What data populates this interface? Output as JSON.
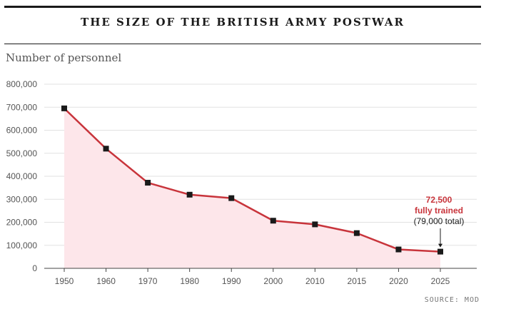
{
  "chart_data": {
    "type": "line",
    "title": "THE SIZE OF THE BRITISH ARMY POSTWAR",
    "ylabel": "Number of personnel",
    "xlabel": "",
    "source": "SOURCE: MOD",
    "categories": [
      "1950",
      "1960",
      "1970",
      "1980",
      "1990",
      "2000",
      "2010",
      "2015",
      "2020",
      "2025"
    ],
    "values": [
      695000,
      520000,
      372000,
      320000,
      305000,
      207000,
      191000,
      153000,
      82000,
      72500
    ],
    "ylim": [
      0,
      800000
    ],
    "yticks": [
      "0",
      "100,000",
      "200,000",
      "300,000",
      "400,000",
      "500,000",
      "600,000",
      "700,000",
      "800,000"
    ],
    "ytick_values": [
      0,
      100000,
      200000,
      300000,
      400000,
      500000,
      600000,
      700000,
      800000
    ],
    "grid": true,
    "area_fill": true,
    "colors": {
      "line": "#c8343b",
      "fill": "#fde6ea",
      "marker": "#1a1a1a",
      "grid": "#e2e2e2"
    },
    "annotation": {
      "line1": "72,500",
      "line2": "fully trained",
      "line3": "(79,000 total)"
    }
  }
}
